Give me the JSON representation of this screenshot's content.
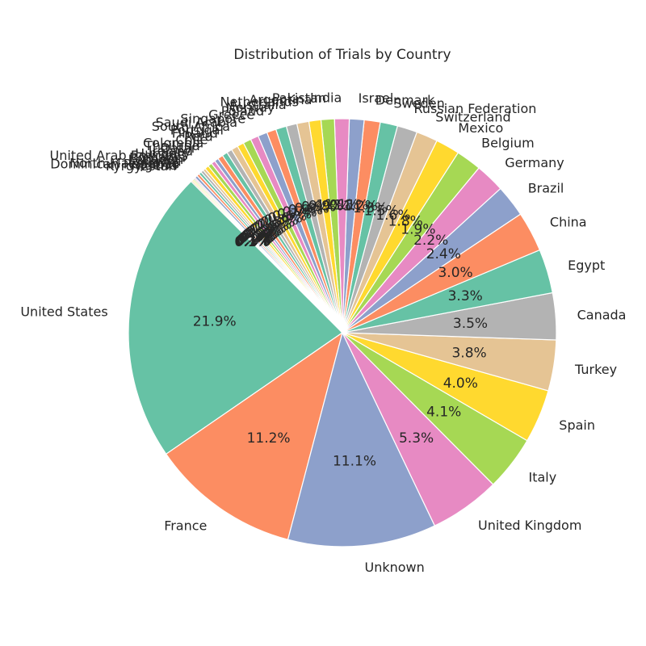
{
  "chart_data": {
    "type": "pie",
    "title": "Distribution of Trials by Country",
    "start_angle_deg": 135,
    "direction": "counterclockwise",
    "palette": [
      "#66c2a5",
      "#fc8d62",
      "#8da0cb",
      "#e78ac3",
      "#a6d854",
      "#ffd92f",
      "#e5c494",
      "#b3b3b3"
    ],
    "slices": [
      {
        "label": "United States",
        "value": 21.9,
        "pct_label": "21.9%"
      },
      {
        "label": "France",
        "value": 11.2,
        "pct_label": "11.2%"
      },
      {
        "label": "Unknown",
        "value": 11.1,
        "pct_label": "11.1%"
      },
      {
        "label": "United Kingdom",
        "value": 5.3,
        "pct_label": "5.3%"
      },
      {
        "label": "Italy",
        "value": 4.1,
        "pct_label": "4.1%"
      },
      {
        "label": "Spain",
        "value": 4.0,
        "pct_label": "4.0%"
      },
      {
        "label": "Turkey",
        "value": 3.8,
        "pct_label": "3.8%"
      },
      {
        "label": "Canada",
        "value": 3.5,
        "pct_label": "3.5%"
      },
      {
        "label": "Egypt",
        "value": 3.3,
        "pct_label": "3.3%"
      },
      {
        "label": "China",
        "value": 3.0,
        "pct_label": "3.0%"
      },
      {
        "label": "Brazil",
        "value": 2.4,
        "pct_label": "2.4%"
      },
      {
        "label": "Germany",
        "value": 2.2,
        "pct_label": "2.2%"
      },
      {
        "label": "Belgium",
        "value": 1.9,
        "pct_label": "1.9%"
      },
      {
        "label": "Mexico",
        "value": 1.8,
        "pct_label": "1.8%"
      },
      {
        "label": "Switzerland",
        "value": 1.6,
        "pct_label": "1.6%"
      },
      {
        "label": "Russian Federation",
        "value": 1.5,
        "pct_label": "1.5%"
      },
      {
        "label": "Sweden",
        "value": 1.3,
        "pct_label": "1.3%"
      },
      {
        "label": "Denmark",
        "value": 1.2,
        "pct_label": "1.2%"
      },
      {
        "label": "Israel",
        "value": 1.1,
        "pct_label": "1.1%"
      },
      {
        "label": "India",
        "value": 1.1,
        "pct_label": "1.1%"
      },
      {
        "label": "Pakistan",
        "value": 1.0,
        "pct_label": "1.0%"
      },
      {
        "label": "Argentina",
        "value": 0.9,
        "pct_label": "0.9%"
      },
      {
        "label": "Netherlands",
        "value": 0.9,
        "pct_label": "0.9%"
      },
      {
        "label": "Australia",
        "value": 0.8,
        "pct_label": "0.8%"
      },
      {
        "label": "Norway",
        "value": 0.8,
        "pct_label": "0.8%"
      },
      {
        "label": "Poland",
        "value": 0.7,
        "pct_label": "0.7%"
      },
      {
        "label": "Greece",
        "value": 0.7,
        "pct_label": "0.7%"
      },
      {
        "label": "Singapore",
        "value": 0.6,
        "pct_label": "0.6%"
      },
      {
        "label": "Saudi Arabia",
        "value": 0.6,
        "pct_label": "0.6%"
      },
      {
        "label": "South Africa",
        "value": 0.5,
        "pct_label": "0.5%"
      },
      {
        "label": "Portugal",
        "value": 0.5,
        "pct_label": "0.5%"
      },
      {
        "label": "Finland",
        "value": 0.4,
        "pct_label": "0.4%"
      },
      {
        "label": "Peru",
        "value": 0.4,
        "pct_label": "0.4%"
      },
      {
        "label": "Chile",
        "value": 0.4,
        "pct_label": "0.4%"
      },
      {
        "label": "Colombia",
        "value": 0.3,
        "pct_label": "0.3%"
      },
      {
        "label": "Thailand",
        "value": 0.3,
        "pct_label": "0.3%"
      },
      {
        "label": "Qatar",
        "value": 0.3,
        "pct_label": "0.3%"
      },
      {
        "label": "Ireland",
        "value": 0.3,
        "pct_label": "0.3%"
      },
      {
        "label": "Hungary",
        "value": 0.2,
        "pct_label": "0.2%"
      },
      {
        "label": "United Arab Emirates",
        "value": 0.2,
        "pct_label": "0.2%"
      },
      {
        "label": "Romania",
        "value": 0.2,
        "pct_label": "0.2%"
      },
      {
        "label": "Lebanon",
        "value": 0.2,
        "pct_label": "0.2%"
      },
      {
        "label": "Kenya",
        "value": 0.2,
        "pct_label": "0.2%"
      },
      {
        "label": "North Macedonia",
        "value": 0.1,
        "pct_label": "0.1%"
      },
      {
        "label": "Dominican Republic",
        "value": 0.1,
        "pct_label": "0.1%"
      },
      {
        "label": "Nigeria",
        "value": 0.1,
        "pct_label": "0.1%"
      },
      {
        "label": "Kyrgyzstan",
        "value": 0.1,
        "pct_label": "0.1%"
      }
    ]
  }
}
